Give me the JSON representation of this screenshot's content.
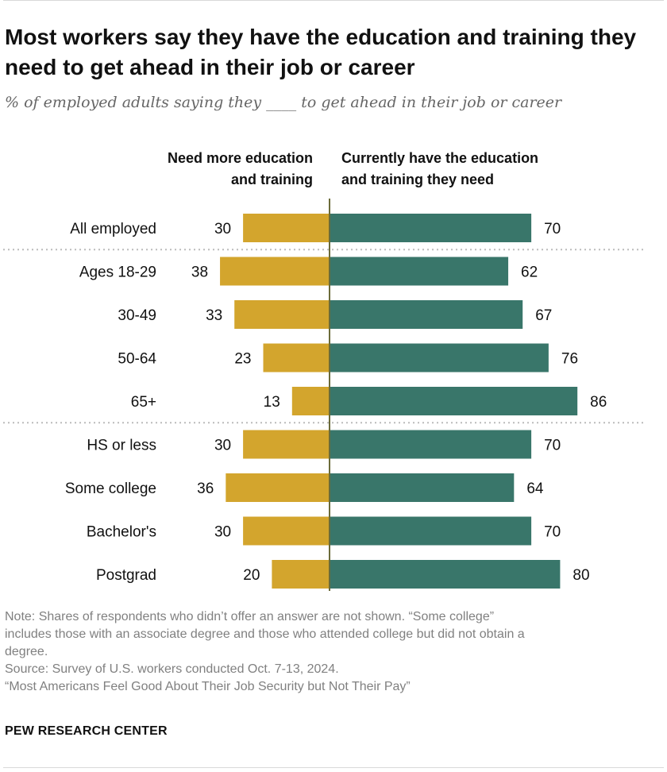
{
  "title": "Most workers say they have the education and training they need to get ahead in their job or career",
  "subtitle": "% of employed adults saying they ____ to get ahead in their job or career",
  "chart_data": {
    "type": "bar",
    "orientation": "horizontal-diverging",
    "categories": [
      "All employed",
      "Ages 18-29",
      "30-49",
      "50-64",
      "65+",
      "HS or less",
      "Some college",
      "Bachelor's",
      "Postgrad"
    ],
    "groups": [
      [
        "All employed"
      ],
      [
        "Ages 18-29",
        "30-49",
        "50-64",
        "65+"
      ],
      [
        "HS or less",
        "Some college",
        "Bachelor's",
        "Postgrad"
      ]
    ],
    "series": [
      {
        "name": "Need more education and training",
        "values": [
          30,
          38,
          33,
          23,
          13,
          30,
          36,
          30,
          20
        ],
        "color": "#d3a52d",
        "direction": "left"
      },
      {
        "name": "Currently have the education and training they need",
        "values": [
          70,
          62,
          67,
          76,
          86,
          70,
          64,
          70,
          80
        ],
        "color": "#39766a",
        "direction": "right"
      }
    ],
    "xlim": [
      0,
      100
    ],
    "xlabel": "",
    "ylabel": ""
  },
  "legend": {
    "left_label": "Need more education and training",
    "right_label": "Currently have the education and training they need"
  },
  "colors": {
    "need_more": "#d3a52d",
    "have": "#39766a",
    "axis": "#6b6b39",
    "separator": "#bbbbbb"
  },
  "note": {
    "line1": "Note: Shares of respondents who didn’t offer an answer are not shown. “Some college”",
    "line2": "includes those with an associate degree and those who attended college but did not obtain a",
    "line3": "degree.",
    "source": "Source: Survey of U.S. workers conducted Oct. 7-13, 2024.",
    "report": "“Most Americans Feel Good About Their Job Security but Not Their Pay”"
  },
  "brand": "PEW RESEARCH CENTER"
}
